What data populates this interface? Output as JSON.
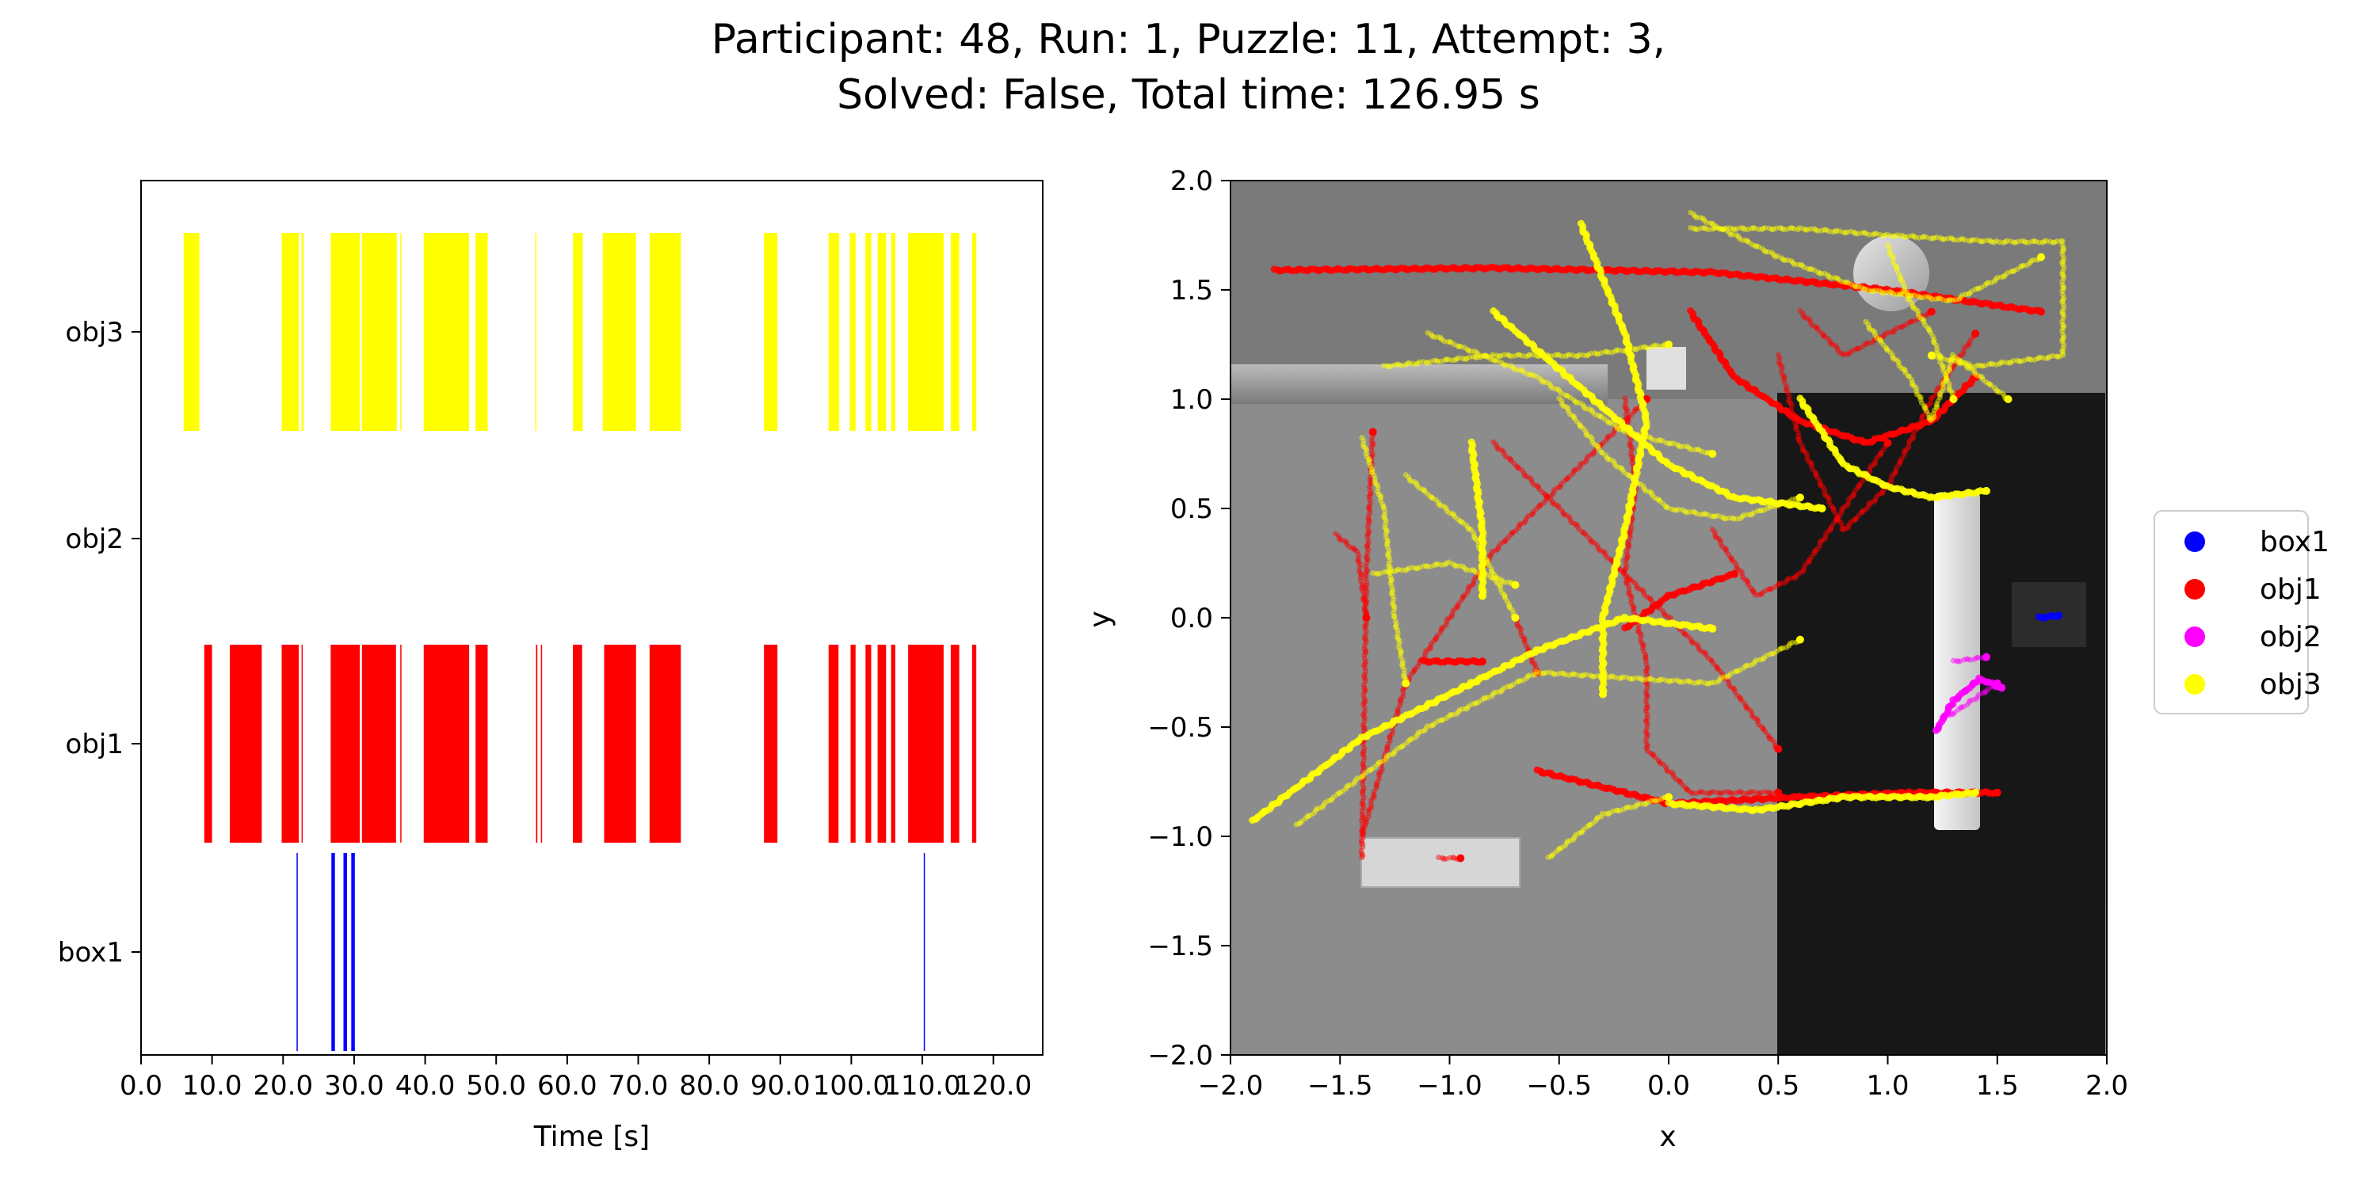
{
  "title_line1": "Participant: 48, Run: 1, Puzzle: 11, Attempt: 3,",
  "title_line2": "Solved: False, Total time: 126.95 s",
  "colors": {
    "box1": "#0000ff",
    "obj1": "#ff0000",
    "obj2": "#ff00ff",
    "obj3": "#ffff00"
  },
  "chart_data": [
    {
      "type": "timeline",
      "xlabel": "Time [s]",
      "ylabel": "",
      "xlim": [
        0,
        126.95
      ],
      "xticks": [
        0,
        10,
        20,
        30,
        40,
        50,
        60,
        70,
        80,
        90,
        100,
        110,
        120
      ],
      "xtick_labels": [
        "0.0",
        "10.0",
        "20.0",
        "30.0",
        "40.0",
        "50.0",
        "60.0",
        "70.0",
        "80.0",
        "90.0",
        "100.0",
        "110.0",
        "120.0"
      ],
      "categories": [
        "box1",
        "obj1",
        "obj2",
        "obj3"
      ],
      "series": [
        {
          "name": "box1",
          "color": "#0000ff",
          "intervals": [
            [
              21.9,
              22.0
            ],
            [
              26.8,
              27.3
            ],
            [
              28.5,
              29.0
            ],
            [
              29.6,
              30.1
            ],
            [
              110.2,
              110.3
            ]
          ]
        },
        {
          "name": "obj1",
          "color": "#ff0000",
          "intervals": [
            [
              8.9,
              10.0
            ],
            [
              12.5,
              17.0
            ],
            [
              19.8,
              22.2
            ],
            [
              22.6,
              22.7
            ],
            [
              26.7,
              30.8
            ],
            [
              31.1,
              35.9
            ],
            [
              36.5,
              36.6
            ],
            [
              39.8,
              46.2
            ],
            [
              47.1,
              48.8
            ],
            [
              55.6,
              55.8
            ],
            [
              56.3,
              56.4
            ],
            [
              60.8,
              62.1
            ],
            [
              65.2,
              69.7
            ],
            [
              71.6,
              76.0
            ],
            [
              87.7,
              89.6
            ],
            [
              96.8,
              98.2
            ],
            [
              99.9,
              100.6
            ],
            [
              102.0,
              102.8
            ],
            [
              103.7,
              104.9
            ],
            [
              105.6,
              106.2
            ],
            [
              108.0,
              113.0
            ],
            [
              114.0,
              115.2
            ],
            [
              117.0,
              117.6
            ]
          ]
        },
        {
          "name": "obj2",
          "color": "#ff00ff",
          "intervals": []
        },
        {
          "name": "obj3",
          "color": "#ffff00",
          "intervals": [
            [
              6.0,
              8.2
            ],
            [
              19.8,
              22.2
            ],
            [
              22.6,
              22.9
            ],
            [
              26.7,
              30.8
            ],
            [
              31.1,
              36.0
            ],
            [
              36.5,
              36.6
            ],
            [
              39.8,
              46.2
            ],
            [
              47.1,
              48.8
            ],
            [
              55.5,
              55.6
            ],
            [
              60.8,
              62.2
            ],
            [
              65.0,
              69.7
            ],
            [
              71.6,
              76.0
            ],
            [
              87.7,
              89.6
            ],
            [
              96.8,
              98.3
            ],
            [
              99.8,
              100.6
            ],
            [
              102.0,
              102.8
            ],
            [
              103.7,
              104.9
            ],
            [
              105.6,
              106.2
            ],
            [
              108.0,
              113.0
            ],
            [
              114.0,
              115.2
            ],
            [
              117.0,
              117.6
            ]
          ]
        }
      ]
    },
    {
      "type": "scatter",
      "xlabel": "x",
      "ylabel": "y",
      "xlim": [
        -2.0,
        2.0
      ],
      "ylim": [
        -2.0,
        2.0
      ],
      "xticks": [
        -2.0,
        -1.5,
        -1.0,
        -0.5,
        0.0,
        0.5,
        1.0,
        1.5,
        2.0
      ],
      "xtick_labels": [
        "−2.0",
        "−1.5",
        "−1.0",
        "−0.5",
        "0.0",
        "0.5",
        "1.0",
        "1.5",
        "2.0"
      ],
      "yticks": [
        -2.0,
        -1.5,
        -1.0,
        -0.5,
        0.0,
        0.5,
        1.0,
        1.5,
        2.0
      ],
      "ytick_labels": [
        "−2.0",
        "−1.5",
        "−1.0",
        "−0.5",
        "0.0",
        "0.5",
        "1.0",
        "1.5",
        "2.0"
      ],
      "legend_position": "right",
      "legend": [
        "box1",
        "obj1",
        "obj2",
        "obj3"
      ],
      "series": [
        {
          "name": "box1",
          "color": "#0000ff",
          "paths": [
            [
              [
                1.69,
                0.0
              ],
              [
                1.78,
                0.01
              ]
            ]
          ]
        },
        {
          "name": "obj1",
          "color": "#ff0000",
          "paths": [
            [
              [
                -1.8,
                1.59
              ],
              [
                -0.8,
                1.6
              ],
              [
                0.2,
                1.58
              ],
              [
                1.0,
                1.5
              ],
              [
                1.7,
                1.4
              ]
            ],
            [
              [
                -1.4,
                -1.1
              ],
              [
                -1.38,
                0.2
              ],
              [
                -1.35,
                0.85
              ]
            ],
            [
              [
                -1.52,
                0.38
              ],
              [
                -1.42,
                0.3
              ],
              [
                -1.38,
                0.0
              ]
            ],
            [
              [
                -1.12,
                -0.2
              ],
              [
                -0.85,
                -0.2
              ]
            ],
            [
              [
                -0.7,
                0.0
              ],
              [
                -0.6,
                -0.25
              ]
            ],
            [
              [
                -1.05,
                -1.1
              ],
              [
                -0.95,
                -1.1
              ]
            ],
            [
              [
                -0.6,
                -0.7
              ],
              [
                0.0,
                -0.85
              ],
              [
                0.6,
                -0.82
              ],
              [
                1.1,
                -0.8
              ],
              [
                1.5,
                -0.8
              ]
            ],
            [
              [
                -0.2,
                1.0
              ],
              [
                -0.15,
                0.6
              ],
              [
                -0.2,
                0.2
              ],
              [
                -0.1,
                -0.2
              ],
              [
                -0.1,
                -0.6
              ],
              [
                0.1,
                -0.8
              ],
              [
                0.5,
                -0.8
              ]
            ],
            [
              [
                0.5,
                1.2
              ],
              [
                0.6,
                0.8
              ],
              [
                0.8,
                0.4
              ],
              [
                1.0,
                0.6
              ],
              [
                1.2,
                1.0
              ],
              [
                1.4,
                1.3
              ]
            ],
            [
              [
                0.1,
                1.4
              ],
              [
                0.3,
                1.1
              ],
              [
                0.6,
                0.9
              ],
              [
                0.9,
                0.8
              ],
              [
                1.2,
                0.9
              ],
              [
                1.4,
                1.1
              ]
            ],
            [
              [
                0.2,
                0.4
              ],
              [
                0.4,
                0.1
              ],
              [
                0.6,
                0.2
              ],
              [
                0.8,
                0.5
              ],
              [
                1.0,
                0.8
              ]
            ],
            [
              [
                0.6,
                1.4
              ],
              [
                0.8,
                1.2
              ],
              [
                1.0,
                1.3
              ],
              [
                1.2,
                1.4
              ]
            ],
            [
              [
                -0.2,
                -0.05
              ],
              [
                0.0,
                0.1
              ],
              [
                0.3,
                0.2
              ]
            ],
            [
              [
                -1.4,
                -1.0
              ],
              [
                -1.2,
                -0.3
              ],
              [
                -0.8,
                0.3
              ],
              [
                -0.4,
                0.7
              ],
              [
                -0.1,
                1.0
              ]
            ],
            [
              [
                -0.8,
                0.8
              ],
              [
                -0.5,
                0.5
              ],
              [
                -0.2,
                0.2
              ],
              [
                0.2,
                -0.2
              ],
              [
                0.5,
                -0.6
              ]
            ]
          ]
        },
        {
          "name": "obj2",
          "color": "#ff00ff",
          "paths": [
            [
              [
                1.22,
                -0.52
              ],
              [
                1.3,
                -0.38
              ],
              [
                1.42,
                -0.28
              ],
              [
                1.52,
                -0.32
              ]
            ],
            [
              [
                1.3,
                -0.2
              ],
              [
                1.45,
                -0.18
              ]
            ],
            [
              [
                1.28,
                -0.45
              ],
              [
                1.5,
                -0.3
              ]
            ]
          ]
        },
        {
          "name": "obj3",
          "color": "#ffff00",
          "paths": [
            [
              [
                -1.9,
                -0.93
              ],
              [
                -1.4,
                -0.55
              ],
              [
                -0.9,
                -0.3
              ],
              [
                -0.6,
                -0.15
              ],
              [
                -0.2,
                0.0
              ],
              [
                0.2,
                -0.05
              ]
            ],
            [
              [
                -1.4,
                0.82
              ],
              [
                -1.3,
                0.5
              ],
              [
                -1.25,
                0.0
              ],
              [
                -1.2,
                -0.3
              ]
            ],
            [
              [
                -1.35,
                0.2
              ],
              [
                -1.0,
                0.25
              ],
              [
                -0.7,
                0.15
              ]
            ],
            [
              [
                -0.9,
                0.8
              ],
              [
                -0.85,
                0.4
              ],
              [
                -0.85,
                0.1
              ]
            ],
            [
              [
                -1.2,
                0.65
              ],
              [
                -0.9,
                0.4
              ],
              [
                -0.7,
                0.0
              ]
            ],
            [
              [
                -1.3,
                1.15
              ],
              [
                -0.8,
                1.2
              ],
              [
                -0.4,
                1.2
              ],
              [
                0.0,
                1.25
              ]
            ],
            [
              [
                -0.4,
                1.8
              ],
              [
                -0.2,
                1.3
              ],
              [
                -0.1,
                0.9
              ],
              [
                -0.2,
                0.4
              ],
              [
                -0.3,
                0.0
              ],
              [
                -0.3,
                -0.35
              ]
            ],
            [
              [
                0.1,
                1.85
              ],
              [
                0.5,
                1.65
              ],
              [
                0.9,
                1.5
              ],
              [
                1.3,
                1.45
              ],
              [
                1.7,
                1.65
              ]
            ],
            [
              [
                0.1,
                1.78
              ],
              [
                0.6,
                1.78
              ],
              [
                1.0,
                1.75
              ],
              [
                1.5,
                1.72
              ],
              [
                1.8,
                1.72
              ],
              [
                1.8,
                1.2
              ],
              [
                1.4,
                1.15
              ],
              [
                1.2,
                1.2
              ]
            ],
            [
              [
                0.6,
                1.0
              ],
              [
                0.8,
                0.7
              ],
              [
                1.0,
                0.6
              ],
              [
                1.2,
                0.55
              ],
              [
                1.45,
                0.58
              ]
            ],
            [
              [
                0.9,
                1.35
              ],
              [
                1.1,
                1.1
              ],
              [
                1.2,
                0.9
              ],
              [
                1.3,
                1.2
              ],
              [
                1.55,
                1.0
              ]
            ],
            [
              [
                -0.5,
                1.0
              ],
              [
                -0.3,
                0.75
              ],
              [
                0.0,
                0.5
              ],
              [
                0.3,
                0.45
              ],
              [
                0.6,
                0.55
              ]
            ],
            [
              [
                0.0,
                -0.85
              ],
              [
                0.4,
                -0.88
              ],
              [
                0.8,
                -0.82
              ],
              [
                1.2,
                -0.82
              ],
              [
                1.4,
                -0.8
              ]
            ],
            [
              [
                -0.55,
                -1.1
              ],
              [
                -0.3,
                -0.9
              ],
              [
                0.0,
                -0.82
              ]
            ],
            [
              [
                -1.7,
                -0.95
              ],
              [
                -1.1,
                -0.5
              ],
              [
                -0.6,
                -0.25
              ],
              [
                0.2,
                -0.3
              ],
              [
                0.6,
                -0.1
              ]
            ],
            [
              [
                -0.8,
                1.4
              ],
              [
                -0.4,
                1.05
              ],
              [
                0.0,
                0.7
              ],
              [
                0.3,
                0.55
              ],
              [
                0.7,
                0.5
              ]
            ],
            [
              [
                -1.1,
                1.3
              ],
              [
                -0.6,
                1.1
              ],
              [
                -0.2,
                0.85
              ],
              [
                0.2,
                0.75
              ]
            ],
            [
              [
                1.0,
                1.7
              ],
              [
                1.1,
                1.45
              ],
              [
                1.2,
                1.3
              ],
              [
                1.3,
                1.0
              ]
            ]
          ]
        }
      ]
    }
  ]
}
